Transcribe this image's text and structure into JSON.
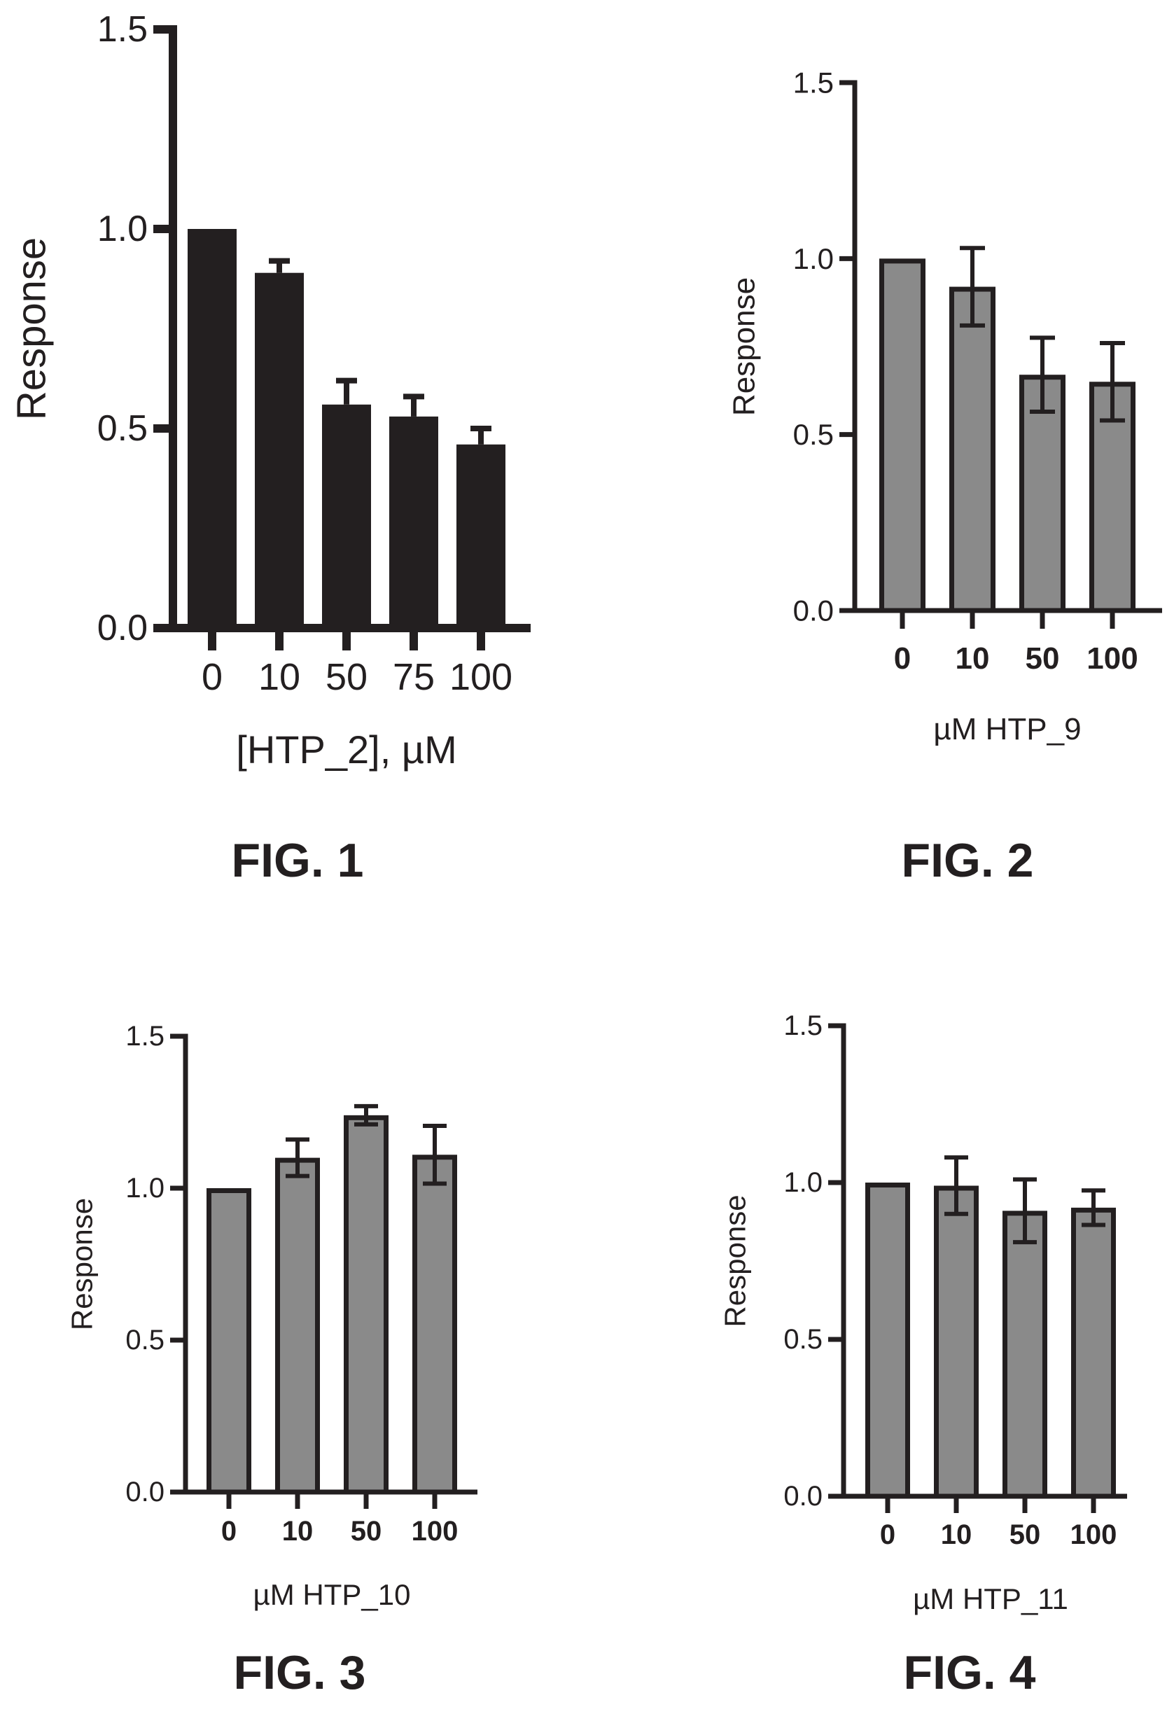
{
  "colors": {
    "ink": "#231f20",
    "bar_dark": "#231f20",
    "bar_gray": "#8a8a8a"
  },
  "figures": [
    {
      "caption": "FIG. 1",
      "chart_data": {
        "type": "bar",
        "title": "",
        "xlabel": "[HTP_2], µM",
        "ylabel": "Response",
        "categories": [
          "0",
          "10",
          "50",
          "75",
          "100"
        ],
        "values": [
          1.0,
          0.89,
          0.56,
          0.53,
          0.46
        ],
        "errors": [
          0,
          0.03,
          0.06,
          0.05,
          0.04
        ],
        "ylim": [
          0,
          1.5
        ],
        "yticks": [
          "0.0",
          "0.5",
          "1.0",
          "1.5"
        ],
        "bar_color": "#231f20",
        "grid": false,
        "legend": "none"
      }
    },
    {
      "caption": "FIG. 2",
      "chart_data": {
        "type": "bar",
        "title": "",
        "xlabel": "µM HTP_9",
        "ylabel": "Response",
        "categories": [
          "0",
          "10",
          "50",
          "100"
        ],
        "values": [
          1.0,
          0.92,
          0.67,
          0.65
        ],
        "errors": [
          0,
          0.11,
          0.105,
          0.11
        ],
        "ylim": [
          0,
          1.5
        ],
        "yticks": [
          "0.0",
          "0.5",
          "1.0",
          "1.5"
        ],
        "bar_color": "#8a8a8a",
        "grid": false,
        "legend": "none"
      }
    },
    {
      "caption": "FIG. 3",
      "chart_data": {
        "type": "bar",
        "title": "",
        "xlabel": "µM HTP_10",
        "ylabel": "Response",
        "categories": [
          "0",
          "10",
          "50",
          "100"
        ],
        "values": [
          1.0,
          1.1,
          1.24,
          1.11
        ],
        "errors": [
          0,
          0.06,
          0.03,
          0.095
        ],
        "ylim": [
          0,
          1.5
        ],
        "yticks": [
          "0.0",
          "0.5",
          "1.0",
          "1.5"
        ],
        "bar_color": "#8a8a8a",
        "grid": false,
        "legend": "none"
      }
    },
    {
      "caption": "FIG. 4",
      "chart_data": {
        "type": "bar",
        "title": "",
        "xlabel": "µM HTP_11",
        "ylabel": "Response",
        "categories": [
          "0",
          "10",
          "50",
          "100"
        ],
        "values": [
          1.0,
          0.99,
          0.91,
          0.92
        ],
        "errors": [
          0,
          0.09,
          0.1,
          0.055
        ],
        "ylim": [
          0,
          1.5
        ],
        "yticks": [
          "0.0",
          "0.5",
          "1.0",
          "1.5"
        ],
        "bar_color": "#8a8a8a",
        "grid": false,
        "legend": "none"
      }
    }
  ]
}
